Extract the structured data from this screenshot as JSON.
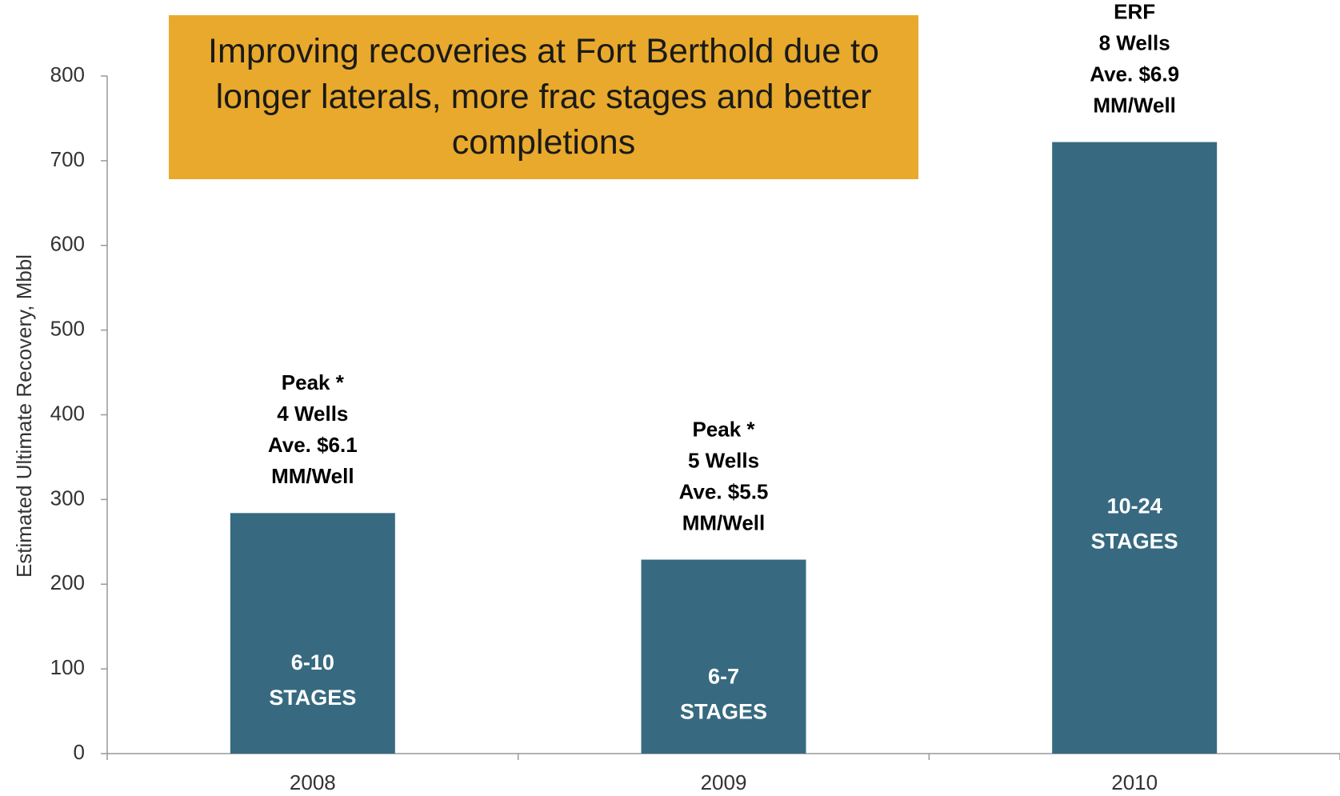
{
  "chart_data": {
    "type": "bar",
    "title": "Improving recoveries at Fort Berthold due to longer laterals, more frac stages and better completions",
    "y_label": "Estimated Ultimate Recovery, Mbbl",
    "categories": [
      "2008",
      "2009",
      "2010"
    ],
    "values": [
      284,
      229,
      722
    ],
    "color": "#376a80",
    "ylim": [
      0,
      800
    ],
    "yticks": [
      0,
      100,
      200,
      300,
      400,
      500,
      600,
      700,
      800
    ],
    "grid": false,
    "annotations_above": [
      [
        "Peak *",
        "4 Wells",
        "Ave. $6.1",
        "MM/Well"
      ],
      [
        "Peak *",
        "5 Wells",
        "Ave. $5.5",
        "MM/Well"
      ],
      [
        "ERF",
        "8 Wells",
        "Ave. $6.9",
        "MM/Well"
      ]
    ],
    "annotations_inside": [
      [
        "6-10",
        "STAGES"
      ],
      [
        "6-7",
        "STAGES"
      ],
      [
        "10-24",
        "STAGES"
      ]
    ]
  }
}
